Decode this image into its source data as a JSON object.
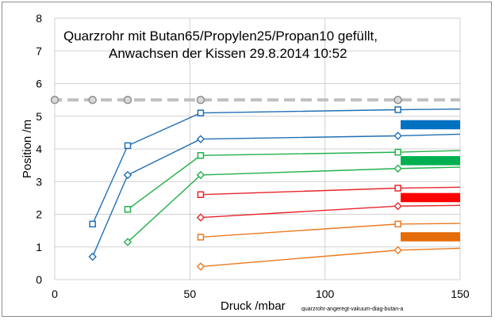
{
  "chart_data": {
    "type": "line",
    "title_line1": "Quarzrohr mit Butan65/Propylen25/Propan10 gefüllt,",
    "title_line2": "Anwachsen der Kissen 29.8.2014  10:52",
    "xlabel": "Druck /mbar",
    "ylabel": "Position /m",
    "footnote": "quarzrohr-angeregt-vakuum-diag-butan-a",
    "xlim": [
      0,
      150
    ],
    "ylim": [
      0,
      8
    ],
    "xticks": [
      0,
      50,
      100,
      150
    ],
    "yticks": [
      0,
      1,
      2,
      3,
      4,
      5,
      6,
      7,
      8
    ],
    "reference_line": {
      "name": "top",
      "y": 5.5,
      "x": [
        0,
        14,
        27,
        54,
        127
      ],
      "color": "#c0c0c0"
    },
    "series": [
      {
        "name": "blue-upper",
        "marker": "square",
        "color": "#1f6fb4",
        "x": [
          14,
          27,
          54,
          127,
          150
        ],
        "y": [
          1.7,
          4.1,
          5.1,
          5.2,
          5.22
        ],
        "markers": 4
      },
      {
        "name": "blue-lower",
        "marker": "diamond",
        "color": "#1f6fb4",
        "x": [
          14,
          27,
          54,
          127,
          150
        ],
        "y": [
          0.7,
          3.2,
          4.3,
          4.4,
          4.45
        ],
        "markers": 4
      },
      {
        "name": "green-upper",
        "marker": "square",
        "color": "#21b14b",
        "x": [
          27,
          54,
          127,
          150
        ],
        "y": [
          2.15,
          3.8,
          3.9,
          3.95
        ],
        "markers": 3
      },
      {
        "name": "green-lower",
        "marker": "diamond",
        "color": "#21b14b",
        "x": [
          27,
          54,
          127,
          150
        ],
        "y": [
          1.15,
          3.2,
          3.4,
          3.44
        ],
        "markers": 3
      },
      {
        "name": "red-upper",
        "marker": "square",
        "color": "#e8262a",
        "x": [
          54,
          127,
          150
        ],
        "y": [
          2.6,
          2.8,
          2.83
        ],
        "markers": 2
      },
      {
        "name": "red-lower",
        "marker": "diamond",
        "color": "#e8262a",
        "x": [
          54,
          127,
          150
        ],
        "y": [
          1.9,
          2.25,
          2.27
        ],
        "markers": 2
      },
      {
        "name": "orange-upper",
        "marker": "square",
        "color": "#ea7a1e",
        "x": [
          54,
          127,
          150
        ],
        "y": [
          1.3,
          1.7,
          1.72
        ],
        "markers": 2
      },
      {
        "name": "orange-lower",
        "marker": "diamond",
        "color": "#ea7a1e",
        "x": [
          54,
          127,
          150
        ],
        "y": [
          0.4,
          0.9,
          0.96
        ],
        "markers": 2
      }
    ],
    "band_markers": [
      {
        "name": "blue-band",
        "color": "#0070c0",
        "x_start": 128,
        "x_end": 150,
        "y_top": 4.88,
        "y_bottom": 4.6
      },
      {
        "name": "green-band",
        "color": "#00b050",
        "x_start": 128,
        "x_end": 150,
        "y_top": 3.78,
        "y_bottom": 3.5
      },
      {
        "name": "red-band",
        "color": "#ff0000",
        "x_start": 128,
        "x_end": 150,
        "y_top": 2.65,
        "y_bottom": 2.37
      },
      {
        "name": "orange-band",
        "color": "#e46c0a",
        "x_start": 128,
        "x_end": 150,
        "y_top": 1.45,
        "y_bottom": 1.17
      }
    ]
  }
}
